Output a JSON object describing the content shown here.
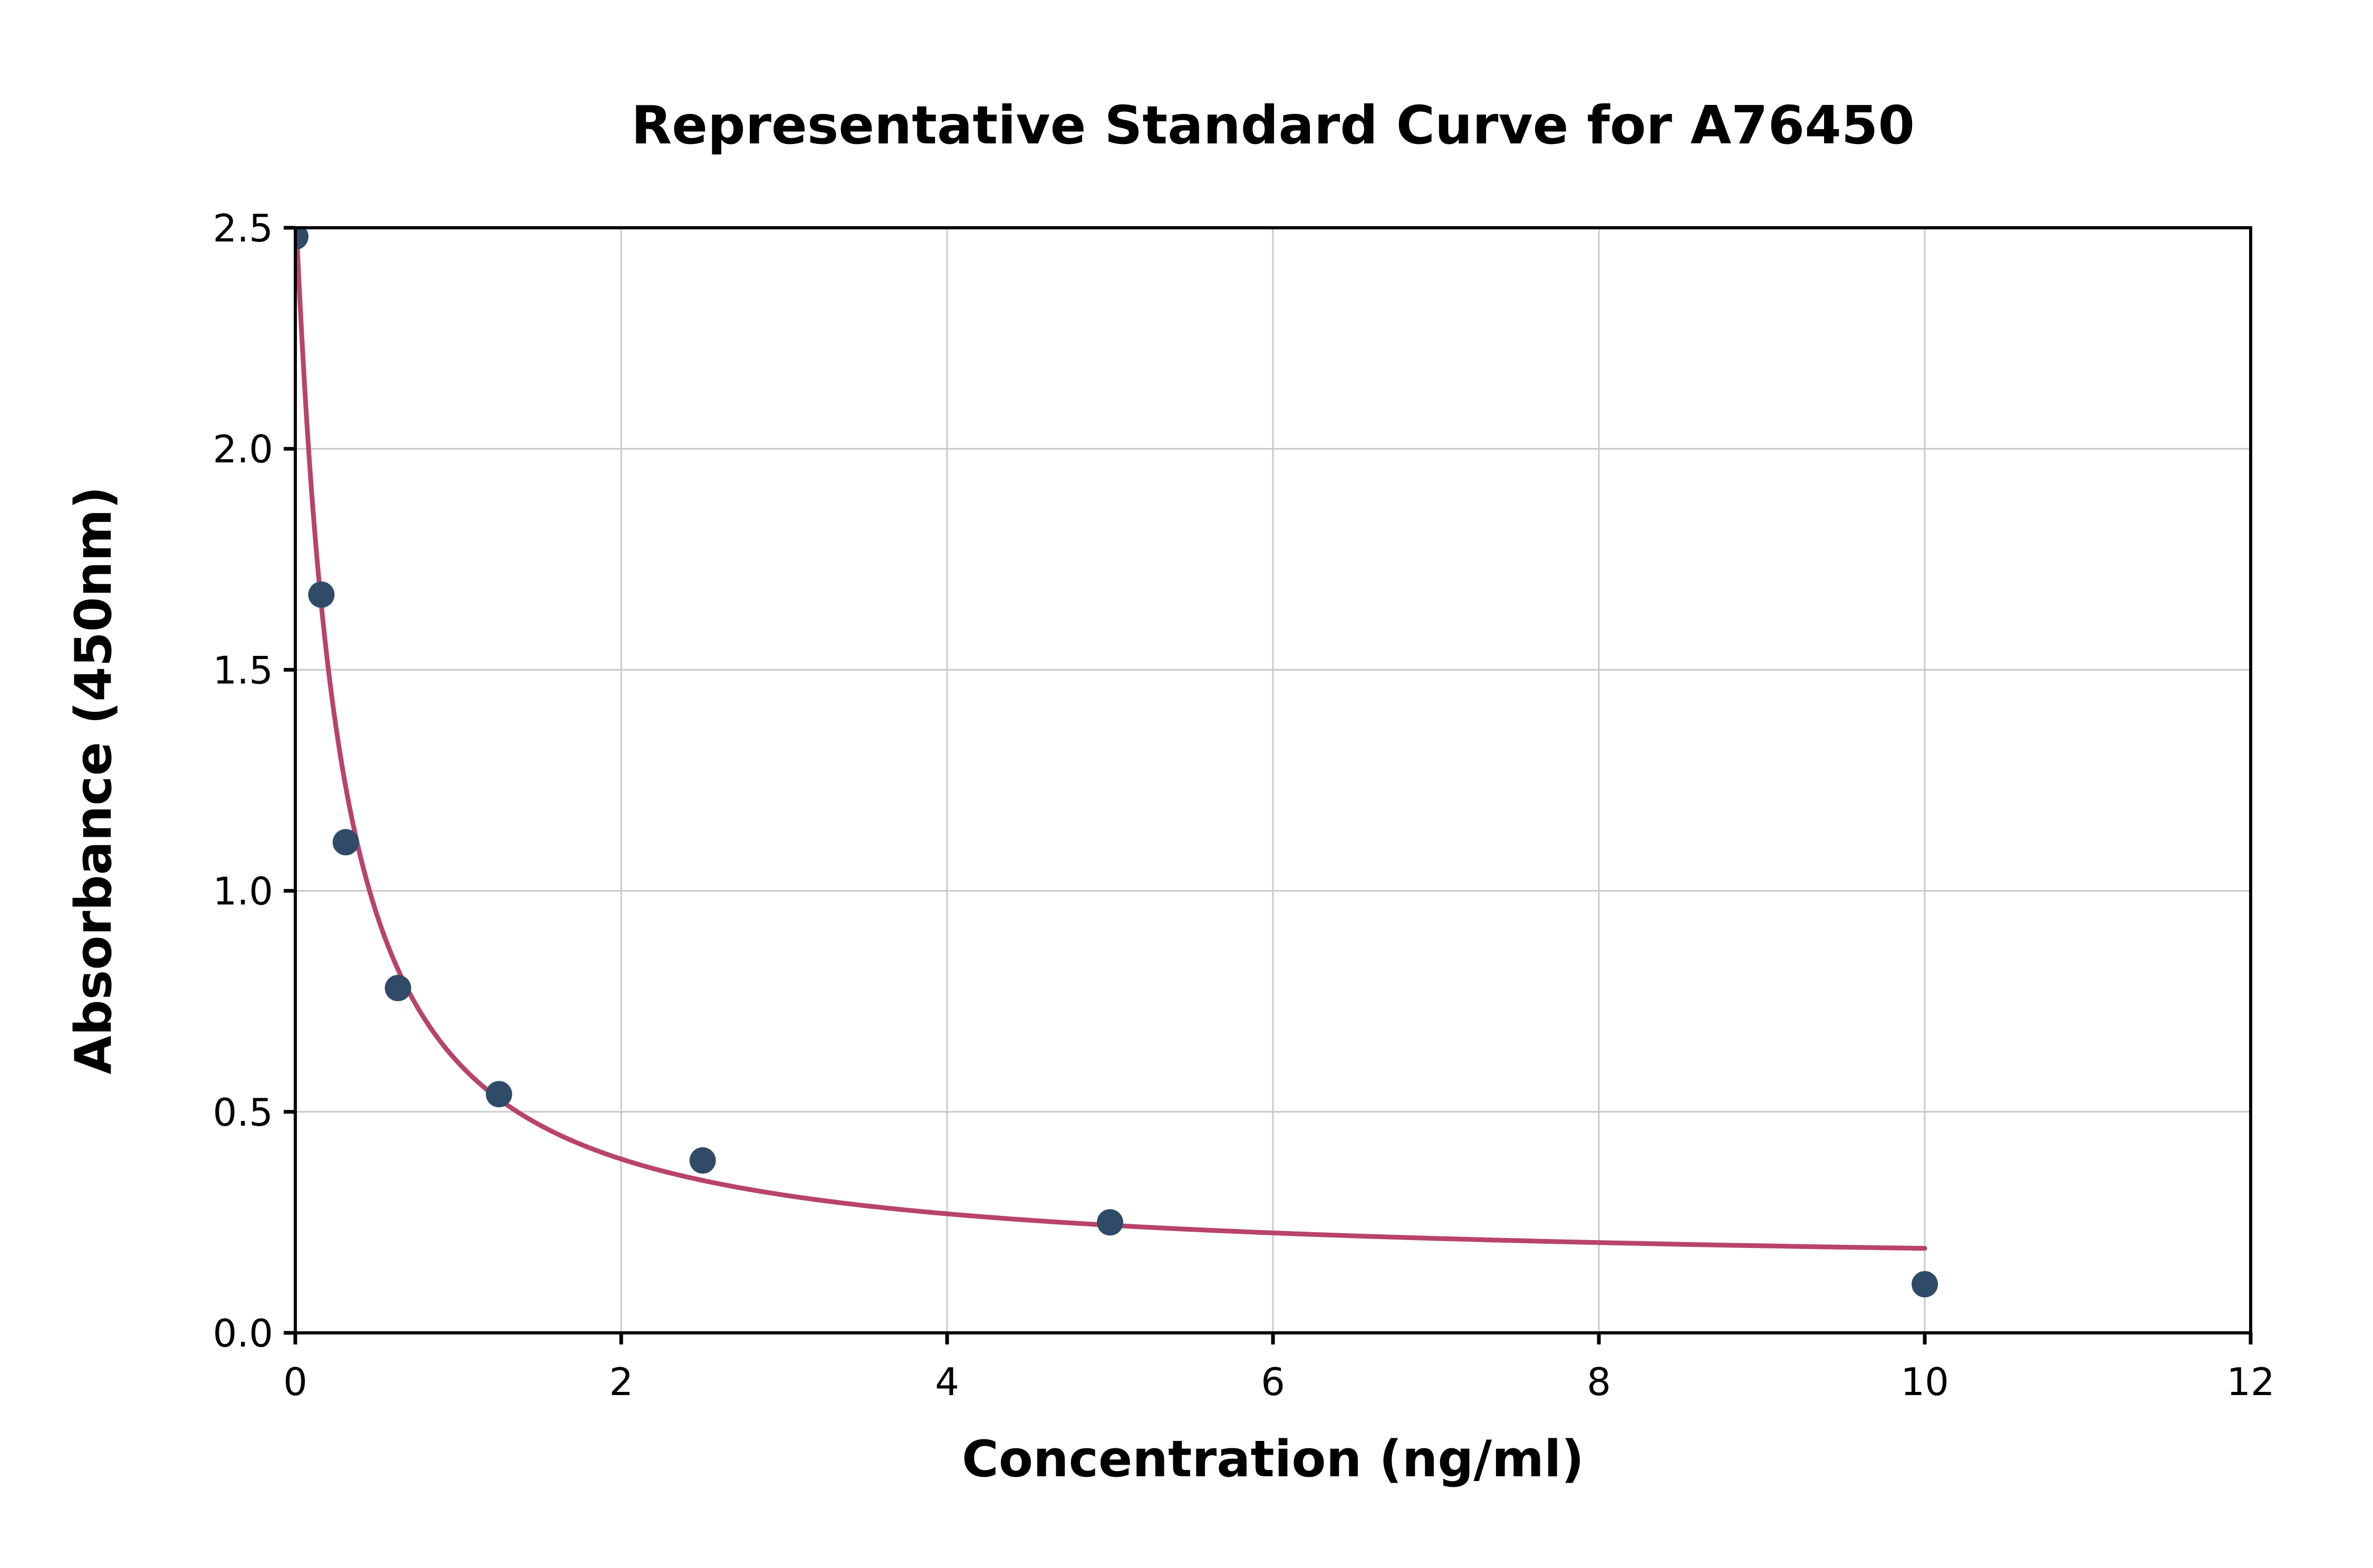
{
  "chart_data": {
    "type": "scatter",
    "title": "Representative Standard Curve for A76450",
    "xlabel": "Concentration (ng/ml)",
    "ylabel": "Absorbance (450nm)",
    "xlim": [
      0,
      12
    ],
    "ylim": [
      0,
      2.5
    ],
    "xticks": [
      0,
      2,
      4,
      6,
      8,
      10,
      12
    ],
    "xtick_labels": [
      "0",
      "2",
      "4",
      "6",
      "8",
      "10",
      "12"
    ],
    "yticks": [
      0,
      0.5,
      1.0,
      1.5,
      2.0,
      2.5
    ],
    "ytick_labels": [
      "0.0",
      "0.5",
      "1.0",
      "1.5",
      "2.0",
      "2.5"
    ],
    "grid": true,
    "legend": "none",
    "points": [
      {
        "x": 0.0,
        "y": 2.48
      },
      {
        "x": 0.16,
        "y": 1.67
      },
      {
        "x": 0.31,
        "y": 1.11
      },
      {
        "x": 0.63,
        "y": 0.78
      },
      {
        "x": 1.25,
        "y": 0.54
      },
      {
        "x": 2.5,
        "y": 0.39
      },
      {
        "x": 5.0,
        "y": 0.25
      },
      {
        "x": 10.0,
        "y": 0.11
      }
    ],
    "fit_curve": {
      "model": "4PL",
      "a": 2.55,
      "b": 1.05,
      "c": 0.26,
      "d": 0.14,
      "x_start": 0.012,
      "x_end": 10.0
    },
    "colors": {
      "point": "#2f4b68",
      "curve": "#b8436b",
      "grid": "#c9c9c9",
      "axis": "#000000",
      "background": "#ffffff"
    }
  }
}
